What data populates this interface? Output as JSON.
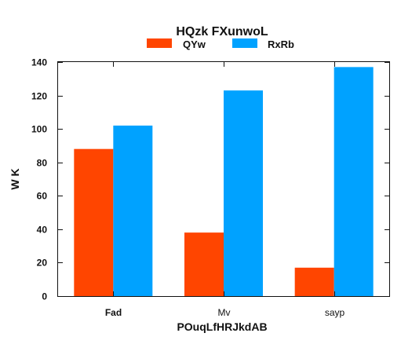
{
  "chart_data": {
    "type": "bar",
    "title": "HQzk  FXunwoL",
    "xlabel": "POuqLfHRJkdAB",
    "ylabel": "W K",
    "categories": [
      "Fad",
      "Mv",
      "sayp"
    ],
    "category_bold": [
      true,
      false,
      false
    ],
    "series": [
      {
        "name": "QYw",
        "color": "#ff4500",
        "values": [
          88,
          38,
          17
        ]
      },
      {
        "name": "RxRb",
        "color": "#00a2ff",
        "values": [
          102,
          123,
          137
        ]
      }
    ],
    "ylim": [
      0,
      140
    ],
    "yticks": [
      0,
      20,
      40,
      60,
      80,
      100,
      120,
      140
    ],
    "grid": false,
    "legend": "top-center"
  }
}
